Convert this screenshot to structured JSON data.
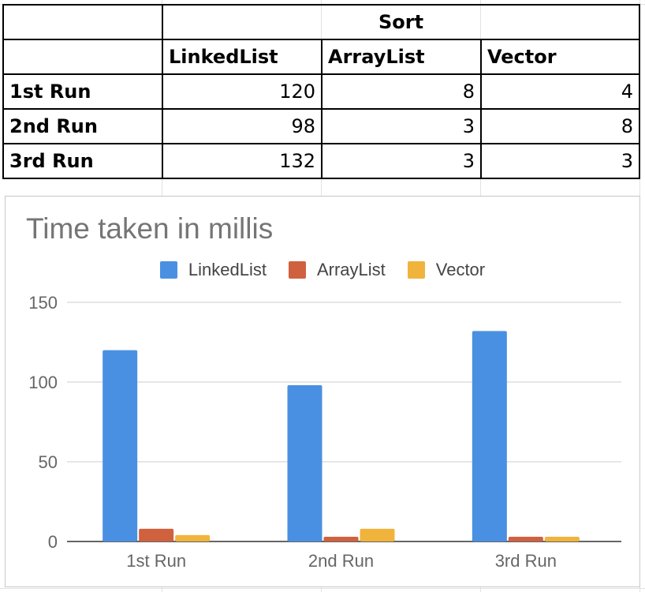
{
  "table": {
    "group_header": "Sort",
    "columns": [
      "LinkedList",
      "ArrayList",
      "Vector"
    ],
    "rows": [
      {
        "label": "1st Run",
        "values": [
          "120",
          "8",
          "4"
        ]
      },
      {
        "label": "2nd Run",
        "values": [
          "98",
          "3",
          "8"
        ]
      },
      {
        "label": "3rd Run",
        "values": [
          "132",
          "3",
          "3"
        ]
      }
    ]
  },
  "chart_data": {
    "type": "bar",
    "title": "Time taken in millis",
    "categories": [
      "1st Run",
      "2nd Run",
      "3rd Run"
    ],
    "series": [
      {
        "name": "LinkedList",
        "values": [
          120,
          98,
          132
        ],
        "color": "#4a90e2"
      },
      {
        "name": "ArrayList",
        "values": [
          8,
          3,
          3
        ],
        "color": "#d0613f"
      },
      {
        "name": "Vector",
        "values": [
          4,
          8,
          3
        ],
        "color": "#f0b43c"
      }
    ],
    "yticks": [
      "0",
      "50",
      "100",
      "150"
    ],
    "ylim": [
      0,
      150
    ],
    "grid": true,
    "legend_position": "top",
    "xlabel": "",
    "ylabel": ""
  }
}
